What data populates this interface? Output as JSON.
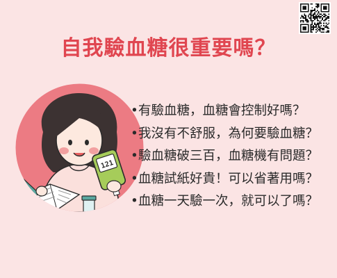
{
  "title": "自我驗血糖很重要嗎？",
  "bullet": "•",
  "questions": [
    "有驗血糖，血糖會控制好嗎？",
    "我沒有不舒服，為何要驗血糖？",
    "驗血糖破三百，血糖機有問題？",
    "血糖試紙好貴！可以省著用嗎？",
    "血糖一天驗一次，就可以了嗎？"
  ],
  "meter_display": "121",
  "colors": {
    "background": "#fbe4e4",
    "title": "#e04650",
    "circle": "#ec7b83",
    "text": "#2a2a2a",
    "meter": "#a6cc5a"
  },
  "icons": [
    "qr-code-icon",
    "girl-with-glucose-meter-illustration"
  ]
}
